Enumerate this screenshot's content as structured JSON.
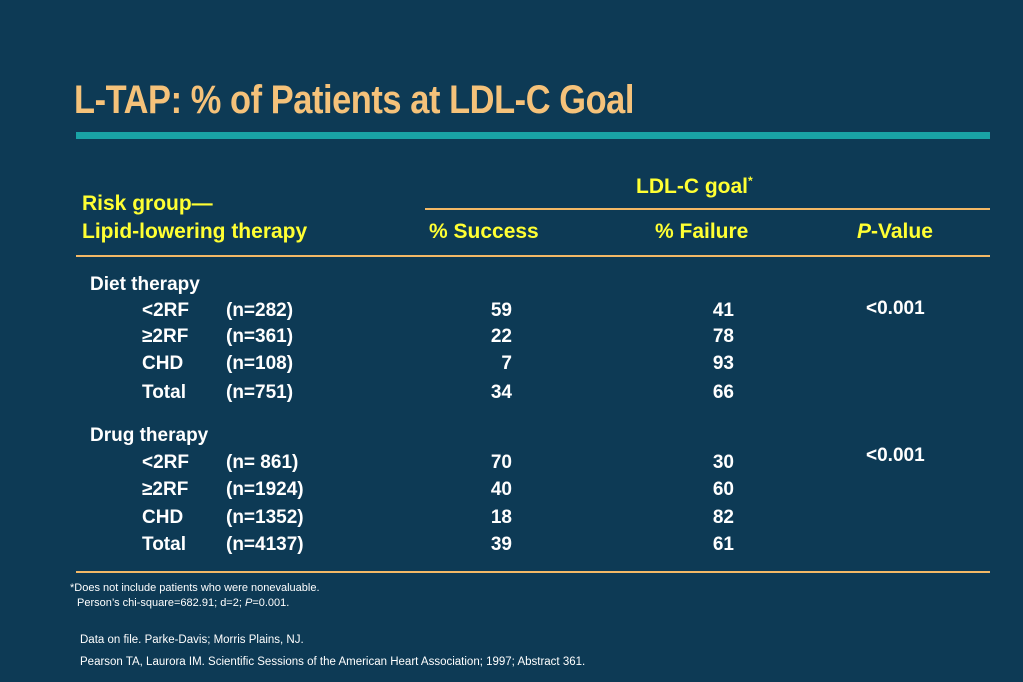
{
  "title": "L-TAP: % of Patients at LDL-C Goal",
  "header": {
    "risk_group_line1": "Risk group—",
    "risk_group_line2": "Lipid-lowering therapy",
    "ldl_goal": "LDL-C goal",
    "ldl_goal_mark": "*",
    "col_success": "% Success",
    "col_failure": "% Failure",
    "col_p_italic": "P",
    "col_p_rest": "-Value"
  },
  "groups": [
    {
      "name": "Diet  therapy",
      "p_value": "<0.001",
      "rows": [
        {
          "rf": "<2RF",
          "n": "(n=282)",
          "success": "59",
          "failure": "41"
        },
        {
          "rf": "≥2RF",
          "n": "(n=361)",
          "success": "22",
          "failure": "78"
        },
        {
          "rf": "CHD",
          "n": "(n=108)",
          "success": "7",
          "failure": "93"
        },
        {
          "rf": "Total",
          "n": "(n=751)",
          "success": "34",
          "failure": "66"
        }
      ]
    },
    {
      "name": "Drug therapy",
      "p_value": "<0.001",
      "rows": [
        {
          "rf": "<2RF",
          "n": "(n=  861)",
          "success": "70",
          "failure": "30"
        },
        {
          "rf": "≥2RF",
          "n": "(n=1924)",
          "success": "40",
          "failure": "60"
        },
        {
          "rf": "CHD",
          "n": "(n=1352)",
          "success": "18",
          "failure": "82"
        },
        {
          "rf": "Total",
          "n": "(n=4137)",
          "success": "39",
          "failure": "61"
        }
      ]
    }
  ],
  "footnotes": {
    "asterisk": "*",
    "note1": "Does not include patients who were nonevaluable.",
    "note2_pre": "Person’s chi-square=682.91; d=2; ",
    "note2_p": "P",
    "note2_post": "=0.001."
  },
  "sources": {
    "line1": "Data on file. Parke-Davis; Morris Plains, NJ.",
    "line2": "Pearson TA, Laurora IM. Scientific Sessions of the American Heart Association; 1997; Abstract 361."
  },
  "colors": {
    "background": "#0d3a55",
    "title": "#f5c27a",
    "title_rule": "#19a3a6",
    "header_text": "#ffff33",
    "rules": "#f2b866",
    "body_text": "#ffffff"
  }
}
